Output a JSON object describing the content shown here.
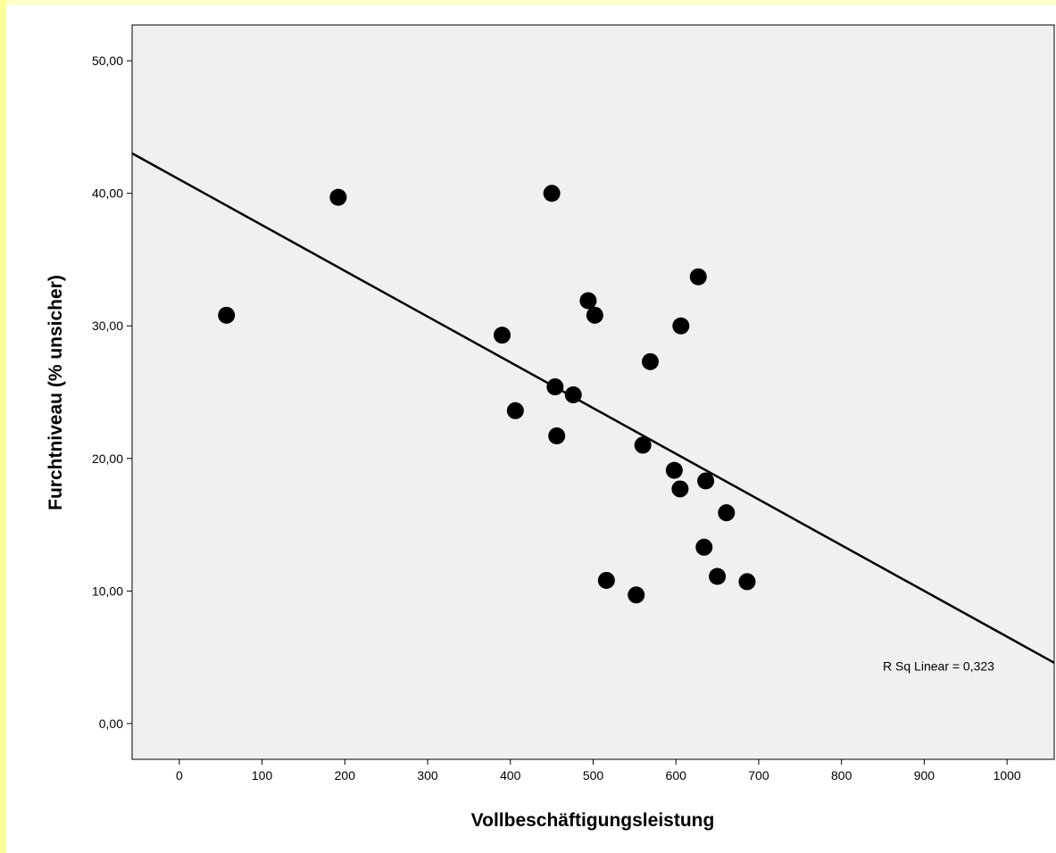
{
  "chart_data": {
    "type": "scatter",
    "title": "",
    "xlabel": "Vollbeschäftigungsleistung",
    "ylabel": "Furchtniveau (% unsicher)",
    "xlim": [
      -57,
      1057
    ],
    "ylim": [
      -2.7,
      52.7
    ],
    "x_ticks": [
      0,
      100,
      200,
      300,
      400,
      500,
      600,
      700,
      800,
      900,
      1000
    ],
    "x_tick_labels": [
      "0",
      "100",
      "200",
      "300",
      "400",
      "500",
      "600",
      "700",
      "800",
      "900",
      "1000"
    ],
    "y_ticks": [
      0,
      10,
      20,
      30,
      40,
      50
    ],
    "y_tick_labels": [
      "0,00",
      "10,00",
      "20,00",
      "30,00",
      "40,00",
      "50,00"
    ],
    "grid": false,
    "points": [
      {
        "x": 57,
        "y": 30.8
      },
      {
        "x": 192,
        "y": 39.7
      },
      {
        "x": 390,
        "y": 29.3
      },
      {
        "x": 406,
        "y": 23.6
      },
      {
        "x": 450,
        "y": 40.0
      },
      {
        "x": 454,
        "y": 25.4
      },
      {
        "x": 456,
        "y": 21.7
      },
      {
        "x": 476,
        "y": 24.8
      },
      {
        "x": 494,
        "y": 31.9
      },
      {
        "x": 502,
        "y": 30.8
      },
      {
        "x": 516,
        "y": 10.8
      },
      {
        "x": 552,
        "y": 9.7
      },
      {
        "x": 560,
        "y": 21.0
      },
      {
        "x": 569,
        "y": 27.3
      },
      {
        "x": 598,
        "y": 19.1
      },
      {
        "x": 605,
        "y": 17.7
      },
      {
        "x": 606,
        "y": 30.0
      },
      {
        "x": 627,
        "y": 33.7
      },
      {
        "x": 634,
        "y": 13.3
      },
      {
        "x": 636,
        "y": 18.3
      },
      {
        "x": 650,
        "y": 11.1
      },
      {
        "x": 661,
        "y": 15.9
      },
      {
        "x": 686,
        "y": 10.7
      }
    ],
    "fit_line": {
      "type": "linear",
      "intercept": 41.05,
      "slope": -0.0345
    },
    "annotation": "R Sq Linear = 0,323",
    "annotation_position": {
      "x": 850,
      "y": 4.0
    },
    "colors": {
      "plot_background": "#f0f0f0",
      "points": "#000000",
      "line": "#000000",
      "page_left_bar": "#ffff99",
      "page_top_bar": "#ffffcc"
    }
  }
}
